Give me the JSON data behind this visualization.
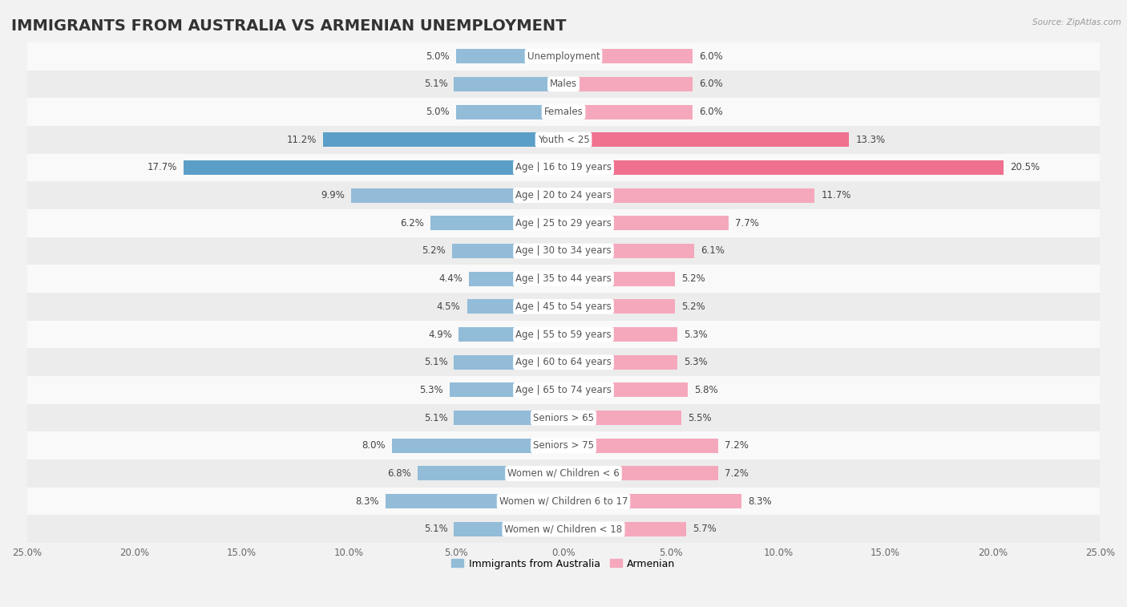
{
  "title": "IMMIGRANTS FROM AUSTRALIA VS ARMENIAN UNEMPLOYMENT",
  "source": "Source: ZipAtlas.com",
  "categories": [
    "Unemployment",
    "Males",
    "Females",
    "Youth < 25",
    "Age | 16 to 19 years",
    "Age | 20 to 24 years",
    "Age | 25 to 29 years",
    "Age | 30 to 34 years",
    "Age | 35 to 44 years",
    "Age | 45 to 54 years",
    "Age | 55 to 59 years",
    "Age | 60 to 64 years",
    "Age | 65 to 74 years",
    "Seniors > 65",
    "Seniors > 75",
    "Women w/ Children < 6",
    "Women w/ Children 6 to 17",
    "Women w/ Children < 18"
  ],
  "australia_values": [
    5.0,
    5.1,
    5.0,
    11.2,
    17.7,
    9.9,
    6.2,
    5.2,
    4.4,
    4.5,
    4.9,
    5.1,
    5.3,
    5.1,
    8.0,
    6.8,
    8.3,
    5.1
  ],
  "armenian_values": [
    6.0,
    6.0,
    6.0,
    13.3,
    20.5,
    11.7,
    7.7,
    6.1,
    5.2,
    5.2,
    5.3,
    5.3,
    5.8,
    5.5,
    7.2,
    7.2,
    8.3,
    5.7
  ],
  "australia_color": "#92bcd8",
  "armenian_color": "#f5a8bc",
  "australia_highlight_color": "#5b9fc8",
  "armenian_highlight_color": "#f07090",
  "bg_color": "#f2f2f2",
  "row_even": "#f9f9f9",
  "row_odd": "#ececec",
  "xlim": 25.0,
  "bar_height": 0.52,
  "title_fontsize": 14,
  "label_fontsize": 8.5,
  "value_fontsize": 8.5,
  "tick_fontsize": 8.5
}
